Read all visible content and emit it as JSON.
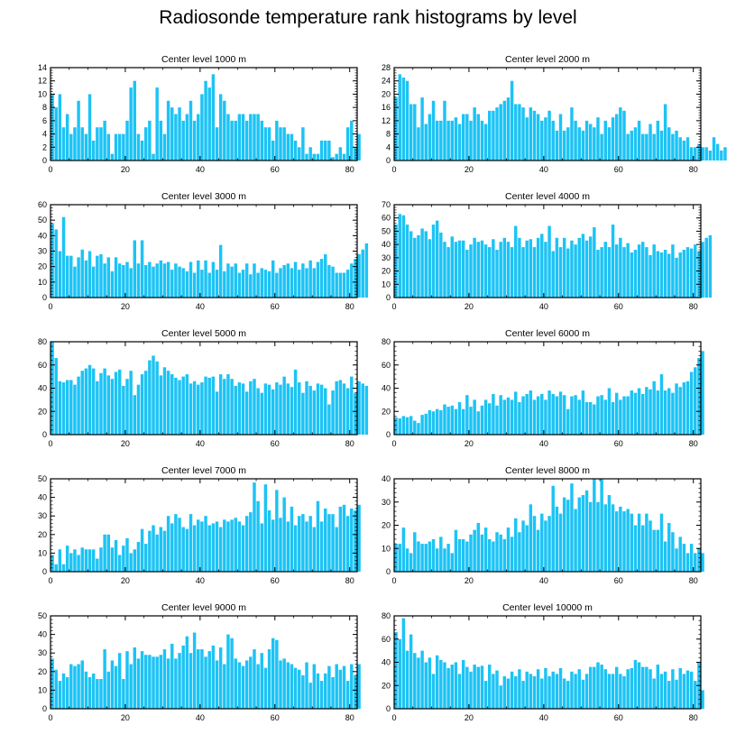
{
  "page": {
    "title": "Radiosonde temperature rank histograms by level"
  },
  "colors": {
    "bar": "#1cc3f5",
    "axis": "#000000",
    "background": "#ffffff"
  },
  "chart_data": [
    {
      "type": "bar",
      "title": "Center level 1000 m",
      "xlim": [
        0,
        82
      ],
      "ylim": [
        0,
        14
      ],
      "xticks": [
        0,
        20,
        40,
        60,
        80
      ],
      "yticks": [
        0,
        2,
        4,
        6,
        8,
        10,
        12,
        14
      ],
      "values": [
        10,
        8,
        10,
        5,
        7,
        4,
        5,
        9,
        5,
        4,
        10,
        3,
        5,
        5,
        6,
        4,
        1,
        4,
        4,
        4,
        6,
        11,
        12,
        4,
        3,
        5,
        6,
        1,
        11,
        6,
        4,
        9,
        8,
        7,
        8,
        6,
        7,
        9,
        6,
        7,
        10,
        12,
        11,
        13,
        5,
        10,
        9,
        7,
        6,
        6,
        7,
        7,
        6,
        7,
        7,
        7,
        6,
        5,
        5,
        3,
        6,
        5,
        5,
        4,
        4,
        3,
        2,
        5,
        1,
        2,
        1,
        1,
        3,
        3,
        3,
        0.5,
        1,
        2,
        1,
        5,
        6,
        2,
        4
      ]
    },
    {
      "type": "bar",
      "title": "Center level 2000 m",
      "xlim": [
        0,
        82
      ],
      "ylim": [
        0,
        28
      ],
      "xticks": [
        0,
        20,
        40,
        60,
        80
      ],
      "yticks": [
        0,
        4,
        8,
        12,
        16,
        20,
        24,
        28
      ],
      "values": [
        19,
        26,
        25,
        24,
        17,
        17,
        10,
        19,
        11,
        14,
        18,
        12,
        12,
        18,
        12,
        12,
        13,
        11,
        14,
        14,
        12,
        16,
        14,
        12,
        11,
        15,
        15,
        16,
        17,
        18,
        19,
        24,
        17,
        17,
        16,
        13,
        16,
        15,
        14,
        12,
        13,
        15,
        12,
        9,
        14,
        9,
        10,
        16,
        12,
        10,
        9,
        12,
        11,
        10,
        13,
        8,
        12,
        10,
        13,
        14,
        16,
        15,
        8,
        9,
        10,
        12,
        8,
        8,
        11,
        8,
        12,
        9,
        17,
        10,
        8,
        9,
        7,
        6,
        7,
        4,
        4,
        5,
        4,
        4,
        3,
        7,
        5,
        3,
        4
      ]
    },
    {
      "type": "bar",
      "title": "Center level 3000 m",
      "xlim": [
        0,
        82
      ],
      "ylim": [
        0,
        60
      ],
      "xticks": [
        0,
        20,
        40,
        60,
        80
      ],
      "yticks": [
        0,
        10,
        20,
        30,
        40,
        50,
        60
      ],
      "values": [
        48,
        44,
        30,
        52,
        27,
        27,
        20,
        26,
        31,
        24,
        30,
        20,
        27,
        28,
        22,
        26,
        17,
        26,
        22,
        21,
        23,
        19,
        37,
        22,
        37,
        21,
        23,
        20,
        22,
        24,
        22,
        23,
        18,
        22,
        20,
        19,
        17,
        23,
        16,
        24,
        18,
        24,
        16,
        23,
        18,
        34,
        17,
        22,
        20,
        22,
        16,
        18,
        22,
        15,
        22,
        16,
        19,
        18,
        17,
        24,
        16,
        19,
        21,
        22,
        19,
        23,
        18,
        22,
        19,
        24,
        19,
        23,
        25,
        28,
        21,
        20,
        16,
        16,
        16,
        18,
        22,
        25,
        28,
        31,
        35
      ]
    },
    {
      "type": "bar",
      "title": "Center level 4000 m",
      "xlim": [
        0,
        82
      ],
      "ylim": [
        0,
        70
      ],
      "xticks": [
        0,
        20,
        40,
        60,
        80
      ],
      "yticks": [
        0,
        10,
        20,
        30,
        40,
        50,
        60,
        70
      ],
      "values": [
        55,
        63,
        62,
        55,
        50,
        45,
        47,
        52,
        50,
        44,
        55,
        58,
        49,
        42,
        38,
        46,
        42,
        43,
        43,
        36,
        40,
        45,
        42,
        43,
        40,
        38,
        44,
        36,
        42,
        45,
        42,
        38,
        54,
        45,
        38,
        43,
        44,
        38,
        45,
        48,
        42,
        54,
        35,
        45,
        38,
        45,
        37,
        43,
        40,
        45,
        48,
        43,
        46,
        53,
        36,
        38,
        42,
        38,
        55,
        40,
        45,
        38,
        41,
        34,
        36,
        40,
        42,
        38,
        32,
        40,
        35,
        34,
        36,
        33,
        40,
        30,
        34,
        36,
        38,
        37,
        40,
        35,
        42,
        45,
        47
      ]
    },
    {
      "type": "bar",
      "title": "Center level 5000 m",
      "xlim": [
        0,
        82
      ],
      "ylim": [
        0,
        80
      ],
      "xticks": [
        0,
        20,
        40,
        60,
        80
      ],
      "yticks": [
        0,
        20,
        40,
        60,
        80
      ],
      "values": [
        81,
        66,
        46,
        45,
        47,
        47,
        43,
        50,
        55,
        57,
        60,
        57,
        46,
        53,
        57,
        51,
        48,
        54,
        56,
        42,
        48,
        55,
        34,
        43,
        52,
        55,
        64,
        68,
        63,
        51,
        58,
        55,
        52,
        49,
        47,
        50,
        52,
        44,
        46,
        43,
        45,
        50,
        49,
        50,
        37,
        52,
        48,
        52,
        48,
        42,
        45,
        44,
        37,
        46,
        48,
        40,
        36,
        44,
        43,
        39,
        45,
        43,
        50,
        44,
        41,
        56,
        45,
        36,
        46,
        42,
        38,
        44,
        43,
        40,
        26,
        38,
        46,
        47,
        44,
        40,
        50,
        36,
        46,
        44,
        42
      ]
    },
    {
      "type": "bar",
      "title": "Center level 6000 m",
      "xlim": [
        0,
        82
      ],
      "ylim": [
        0,
        80
      ],
      "xticks": [
        0,
        20,
        40,
        60,
        80
      ],
      "yticks": [
        0,
        20,
        40,
        60,
        80
      ],
      "values": [
        15,
        14,
        16,
        15,
        16,
        12,
        10,
        17,
        18,
        21,
        20,
        22,
        21,
        26,
        24,
        25,
        22,
        28,
        22,
        34,
        24,
        30,
        20,
        25,
        30,
        27,
        35,
        25,
        34,
        30,
        32,
        30,
        37,
        28,
        33,
        35,
        38,
        30,
        33,
        35,
        30,
        38,
        35,
        33,
        37,
        34,
        22,
        33,
        34,
        30,
        38,
        28,
        28,
        26,
        33,
        34,
        30,
        40,
        28,
        36,
        30,
        33,
        33,
        38,
        36,
        40,
        35,
        41,
        39,
        46,
        38,
        52,
        38,
        40,
        36,
        44,
        41,
        45,
        46,
        54,
        58,
        66,
        72
      ]
    },
    {
      "type": "bar",
      "title": "Center level 7000 m",
      "xlim": [
        0,
        82
      ],
      "ylim": [
        0,
        50
      ],
      "xticks": [
        0,
        20,
        40,
        60,
        80
      ],
      "yticks": [
        0,
        10,
        20,
        30,
        40,
        50
      ],
      "values": [
        9,
        4,
        12,
        4,
        14,
        10,
        12,
        9,
        13,
        12,
        12,
        12,
        7,
        13,
        20,
        20,
        13,
        17,
        9,
        14,
        18,
        10,
        12,
        16,
        23,
        15,
        22,
        25,
        20,
        24,
        22,
        30,
        26,
        31,
        29,
        24,
        23,
        31,
        25,
        28,
        27,
        30,
        25,
        26,
        27,
        24,
        28,
        27,
        28,
        29,
        27,
        25,
        30,
        32,
        48,
        38,
        26,
        47,
        33,
        28,
        44,
        29,
        40,
        27,
        35,
        25,
        30,
        31,
        27,
        30,
        24,
        38,
        27,
        34,
        31,
        31,
        24,
        35,
        36,
        30,
        34,
        33,
        36
      ]
    },
    {
      "type": "bar",
      "title": "Center level 8000 m",
      "xlim": [
        0,
        82
      ],
      "ylim": [
        0,
        40
      ],
      "xticks": [
        0,
        20,
        40,
        60,
        80
      ],
      "yticks": [
        0,
        10,
        20,
        30,
        40
      ],
      "values": [
        12,
        12,
        19,
        10,
        8,
        17,
        13,
        12,
        12,
        13,
        14,
        10,
        15,
        10,
        12,
        8,
        18,
        14,
        14,
        13,
        16,
        18,
        21,
        16,
        19,
        14,
        13,
        17,
        16,
        14,
        19,
        15,
        23,
        17,
        22,
        20,
        29,
        24,
        18,
        25,
        22,
        24,
        37,
        28,
        25,
        32,
        31,
        38,
        27,
        32,
        33,
        35,
        30,
        40,
        30,
        40,
        29,
        33,
        29,
        26,
        28,
        26,
        27,
        25,
        20,
        25,
        20,
        25,
        22,
        18,
        18,
        25,
        13,
        21,
        17,
        10,
        15,
        12,
        8,
        12,
        8,
        10,
        8
      ]
    },
    {
      "type": "bar",
      "title": "Center level 9000 m",
      "xlim": [
        0,
        82
      ],
      "ylim": [
        0,
        50
      ],
      "xticks": [
        0,
        20,
        40,
        60,
        80
      ],
      "yticks": [
        0,
        10,
        20,
        30,
        40,
        50
      ],
      "values": [
        27,
        21,
        15,
        19,
        17,
        24,
        23,
        24,
        26,
        20,
        17,
        19,
        16,
        16,
        32,
        20,
        26,
        23,
        30,
        16,
        31,
        24,
        33,
        27,
        31,
        29,
        29,
        28,
        28,
        29,
        32,
        27,
        35,
        27,
        30,
        34,
        39,
        30,
        41,
        32,
        32,
        28,
        31,
        34,
        26,
        33,
        24,
        40,
        38,
        27,
        25,
        23,
        26,
        28,
        32,
        24,
        30,
        22,
        32,
        38,
        37,
        26,
        27,
        25,
        24,
        22,
        21,
        18,
        25,
        14,
        24,
        19,
        15,
        19,
        23,
        17,
        24,
        21,
        23,
        15,
        24,
        18,
        24
      ]
    },
    {
      "type": "bar",
      "title": "Center level 10000 m",
      "xlim": [
        0,
        82
      ],
      "ylim": [
        0,
        80
      ],
      "xticks": [
        0,
        20,
        40,
        60,
        80
      ],
      "yticks": [
        0,
        20,
        40,
        60,
        80
      ],
      "values": [
        66,
        60,
        78,
        50,
        64,
        48,
        44,
        50,
        40,
        44,
        30,
        46,
        42,
        40,
        35,
        38,
        40,
        30,
        42,
        36,
        32,
        38,
        36,
        37,
        24,
        38,
        30,
        33,
        20,
        28,
        26,
        32,
        28,
        34,
        24,
        32,
        30,
        28,
        34,
        26,
        35,
        28,
        32,
        30,
        35,
        26,
        24,
        32,
        30,
        34,
        25,
        30,
        36,
        36,
        40,
        38,
        34,
        30,
        30,
        36,
        30,
        28,
        34,
        35,
        42,
        40,
        36,
        36,
        34,
        26,
        38,
        30,
        32,
        24,
        34,
        25,
        35,
        30,
        33,
        32,
        24,
        40,
        16
      ]
    }
  ]
}
